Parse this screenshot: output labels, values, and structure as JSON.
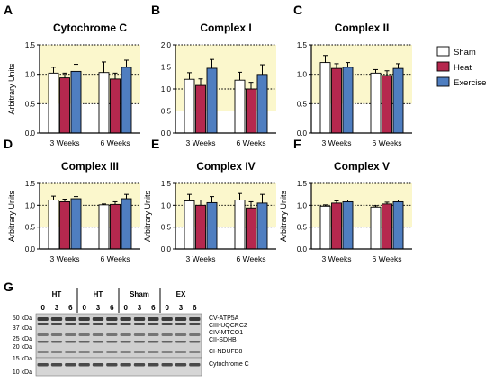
{
  "colors": {
    "sham": "#ffffff",
    "heat": "#b5284e",
    "exercise": "#4f7ec0",
    "band": "#fbf7cc",
    "axis": "#000000"
  },
  "legend": {
    "placement": "right",
    "items": [
      {
        "label": "Sham",
        "color": "#ffffff"
      },
      {
        "label": "Heat",
        "color": "#b5284e"
      },
      {
        "label": "Exercise",
        "color": "#4f7ec0"
      }
    ]
  },
  "chart_data": [
    {
      "panel": "A",
      "type": "bar",
      "title": "Cytochrome C",
      "ylabel": "Arbitrary Units",
      "categories": [
        "3 Weeks",
        "6 Weeks"
      ],
      "ylim": [
        0,
        1.5
      ],
      "yticks": [
        "0.0",
        "0.5",
        "1.0",
        "1.5"
      ],
      "tick_values": [
        0,
        0.5,
        1.0,
        1.5
      ],
      "shaded_range": [
        0.5,
        1.5
      ],
      "series": [
        {
          "name": "Sham",
          "values": [
            1.02,
            1.03
          ],
          "errors": [
            0.1,
            0.18
          ]
        },
        {
          "name": "Heat",
          "values": [
            0.94,
            0.92
          ],
          "errors": [
            0.08,
            0.1
          ]
        },
        {
          "name": "Exercise",
          "values": [
            1.05,
            1.12
          ],
          "errors": [
            0.12,
            0.12
          ]
        }
      ]
    },
    {
      "panel": "B",
      "type": "bar",
      "title": "Complex I",
      "ylabel": "",
      "categories": [
        "3 Weeks",
        "6 Weeks"
      ],
      "ylim": [
        0,
        2.0
      ],
      "yticks": [
        "0.0",
        "0.5",
        "1.0",
        "1.5",
        "2.0"
      ],
      "tick_values": [
        0,
        0.5,
        1.0,
        1.5,
        2.0
      ],
      "shaded_range": [
        0.5,
        2.0
      ],
      "series": [
        {
          "name": "Sham",
          "values": [
            1.22,
            1.2
          ],
          "errors": [
            0.15,
            0.18
          ]
        },
        {
          "name": "Heat",
          "values": [
            1.08,
            1.0
          ],
          "errors": [
            0.15,
            0.15
          ]
        },
        {
          "name": "Exercise",
          "values": [
            1.47,
            1.33
          ],
          "errors": [
            0.2,
            0.22
          ]
        }
      ]
    },
    {
      "panel": "C",
      "type": "bar",
      "title": "Complex II",
      "ylabel": "",
      "categories": [
        "3 Weeks",
        "6 Weeks"
      ],
      "ylim": [
        0,
        1.5
      ],
      "yticks": [
        "0.0",
        "0.5",
        "1.0",
        "1.5"
      ],
      "tick_values": [
        0,
        0.5,
        1.0,
        1.5
      ],
      "shaded_range": [
        0.5,
        1.5
      ],
      "series": [
        {
          "name": "Sham",
          "values": [
            1.2,
            1.02
          ],
          "errors": [
            0.12,
            0.06
          ]
        },
        {
          "name": "Heat",
          "values": [
            1.1,
            0.98
          ],
          "errors": [
            0.08,
            0.08
          ]
        },
        {
          "name": "Exercise",
          "values": [
            1.12,
            1.1
          ],
          "errors": [
            0.08,
            0.08
          ]
        }
      ]
    },
    {
      "panel": "D",
      "type": "bar",
      "title": "Complex III",
      "ylabel": "Arbitrary Units",
      "categories": [
        "3 Weeks",
        "6 Weeks"
      ],
      "ylim": [
        0,
        1.5
      ],
      "yticks": [
        "0.0",
        "0.5",
        "1.0",
        "1.5"
      ],
      "tick_values": [
        0,
        0.5,
        1.0,
        1.5
      ],
      "shaded_range": [
        0.5,
        1.5
      ],
      "series": [
        {
          "name": "Sham",
          "values": [
            1.12,
            1.01
          ],
          "errors": [
            0.09,
            0.02
          ]
        },
        {
          "name": "Heat",
          "values": [
            1.08,
            1.02
          ],
          "errors": [
            0.06,
            0.06
          ]
        },
        {
          "name": "Exercise",
          "values": [
            1.15,
            1.15
          ],
          "errors": [
            0.05,
            0.1
          ]
        }
      ]
    },
    {
      "panel": "E",
      "type": "bar",
      "title": "Complex IV",
      "ylabel": "Arbitrary Units",
      "categories": [
        "3 Weeks",
        "6 Weeks"
      ],
      "ylim": [
        0,
        1.5
      ],
      "yticks": [
        "0.0",
        "0.5",
        "1.0",
        "1.5"
      ],
      "tick_values": [
        0,
        0.5,
        1.0,
        1.5
      ],
      "shaded_range": [
        0.5,
        1.5
      ],
      "series": [
        {
          "name": "Sham",
          "values": [
            1.1,
            1.12
          ],
          "errors": [
            0.15,
            0.15
          ]
        },
        {
          "name": "Heat",
          "values": [
            1.0,
            0.94
          ],
          "errors": [
            0.12,
            0.14
          ]
        },
        {
          "name": "Exercise",
          "values": [
            1.06,
            1.05
          ],
          "errors": [
            0.14,
            0.2
          ]
        }
      ]
    },
    {
      "panel": "F",
      "type": "bar",
      "title": "Complex V",
      "ylabel": "Arbitrary Units",
      "categories": [
        "3 Weeks",
        "6 Weeks"
      ],
      "ylim": [
        0,
        1.5
      ],
      "yticks": [
        "0.0",
        "0.5",
        "1.0",
        "1.5"
      ],
      "tick_values": [
        0,
        0.5,
        1.0,
        1.5
      ],
      "shaded_range": [
        0.5,
        1.5
      ],
      "series": [
        {
          "name": "Sham",
          "values": [
            0.98,
            0.96
          ],
          "errors": [
            0.03,
            0.03
          ]
        },
        {
          "name": "Heat",
          "values": [
            1.05,
            1.03
          ],
          "errors": [
            0.05,
            0.04
          ]
        },
        {
          "name": "Exercise",
          "values": [
            1.08,
            1.08
          ],
          "errors": [
            0.04,
            0.04
          ]
        }
      ]
    }
  ],
  "blot": {
    "panel": "G",
    "groups": [
      "HT",
      "HT",
      "Sham",
      "EX"
    ],
    "lanes": [
      "0",
      "3",
      "6",
      "0",
      "3",
      "6",
      "0",
      "3",
      "6",
      "0",
      "3",
      "6"
    ],
    "markers": [
      "50 kDa",
      "37 kDa",
      "25 kDa",
      "20 kDa",
      "15 kDa",
      "10 kDa"
    ],
    "bands": [
      "CV-ATP5A",
      "CIII-UQCRC2",
      "CIV-MTCO1",
      "CII-SDHB",
      "CI-NDUFB8",
      "Cytochrome C"
    ]
  }
}
